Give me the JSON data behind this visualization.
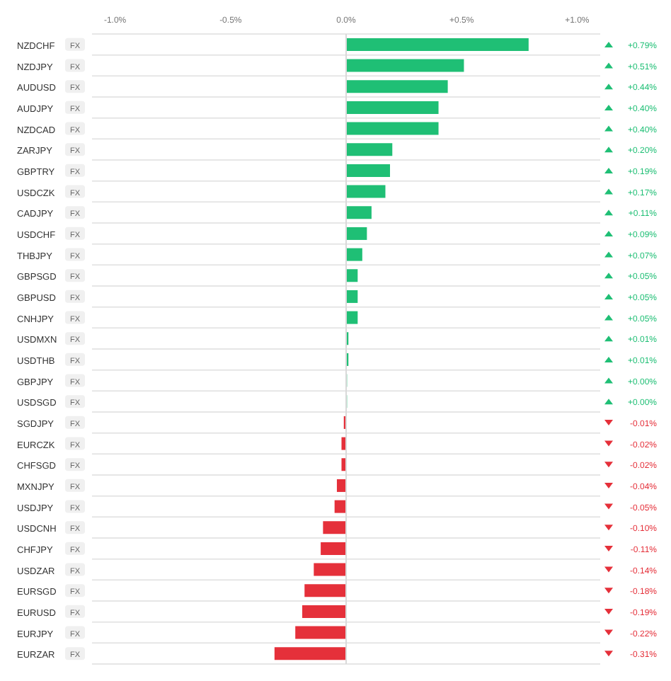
{
  "chart_data": {
    "type": "bar",
    "orientation": "horizontal",
    "categories": [
      "NZDCHF",
      "NZDJPY",
      "AUDUSD",
      "AUDJPY",
      "NZDCAD",
      "ZARJPY",
      "GBPTRY",
      "USDCZK",
      "CADJPY",
      "USDCHF",
      "THBJPY",
      "GBPSGD",
      "GBPUSD",
      "CNHJPY",
      "USDMXN",
      "USDTHB",
      "GBPJPY",
      "USDSGD",
      "SGDJPY",
      "EURCZK",
      "CHFSGD",
      "MXNJPY",
      "USDJPY",
      "USDCNH",
      "CHFJPY",
      "USDZAR",
      "EURSGD",
      "EURUSD",
      "EURJPY",
      "EURZAR"
    ],
    "values": [
      0.79,
      0.51,
      0.44,
      0.4,
      0.4,
      0.2,
      0.19,
      0.17,
      0.11,
      0.09,
      0.07,
      0.05,
      0.05,
      0.05,
      0.01,
      0.01,
      0.004,
      0.004,
      -0.01,
      -0.02,
      -0.02,
      -0.04,
      -0.05,
      -0.1,
      -0.11,
      -0.14,
      -0.18,
      -0.19,
      -0.22,
      -0.31
    ],
    "value_labels": [
      "+0.79%",
      "+0.51%",
      "+0.44%",
      "+0.40%",
      "+0.40%",
      "+0.20%",
      "+0.19%",
      "+0.17%",
      "+0.11%",
      "+0.09%",
      "+0.07%",
      "+0.05%",
      "+0.05%",
      "+0.05%",
      "+0.01%",
      "+0.01%",
      "+0.00%",
      "+0.00%",
      "-0.01%",
      "-0.02%",
      "-0.02%",
      "-0.04%",
      "-0.05%",
      "-0.10%",
      "-0.11%",
      "-0.14%",
      "-0.18%",
      "-0.19%",
      "-0.22%",
      "-0.31%"
    ],
    "colors": [
      "#1fbf75",
      "#1fbf75",
      "#1fbf75",
      "#1fbf75",
      "#1fbf75",
      "#1fbf75",
      "#1fbf75",
      "#1fbf75",
      "#1fbf75",
      "#1fbf75",
      "#1fbf75",
      "#1fbf75",
      "#1fbf75",
      "#1fbf75",
      "#1fbf75",
      "#1fbf75",
      "#1fbf75",
      "#1fbf75",
      "#e5303a",
      "#e5303a",
      "#e5303a",
      "#e5303a",
      "#e5303a",
      "#e5303a",
      "#e5303a",
      "#e5303a",
      "#e5303a",
      "#e5303a",
      "#e5303a",
      "#e5303a"
    ],
    "xlim": [
      -1.1,
      1.1
    ],
    "xticks": [
      {
        "value": -1,
        "label": "-1.0%"
      },
      {
        "value": -0.5,
        "label": "-0.5%"
      },
      {
        "value": 0,
        "label": "0.0%"
      },
      {
        "value": 0.5,
        "label": "+0.5%"
      },
      {
        "value": 1,
        "label": "+1.0%"
      }
    ],
    "ref_lines": [
      {
        "axis": "x",
        "value": 0,
        "color": "#d9d9d9"
      }
    ],
    "grid": "y",
    "annotations": [
      "FX",
      "FX",
      "FX",
      "FX",
      "FX",
      "FX",
      "FX",
      "FX",
      "FX",
      "FX",
      "FX",
      "FX",
      "FX",
      "FX",
      "FX",
      "FX",
      "FX",
      "FX",
      "FX",
      "FX",
      "FX",
      "FX",
      "FX",
      "FX",
      "FX",
      "FX",
      "FX",
      "FX",
      "FX",
      "FX"
    ]
  }
}
